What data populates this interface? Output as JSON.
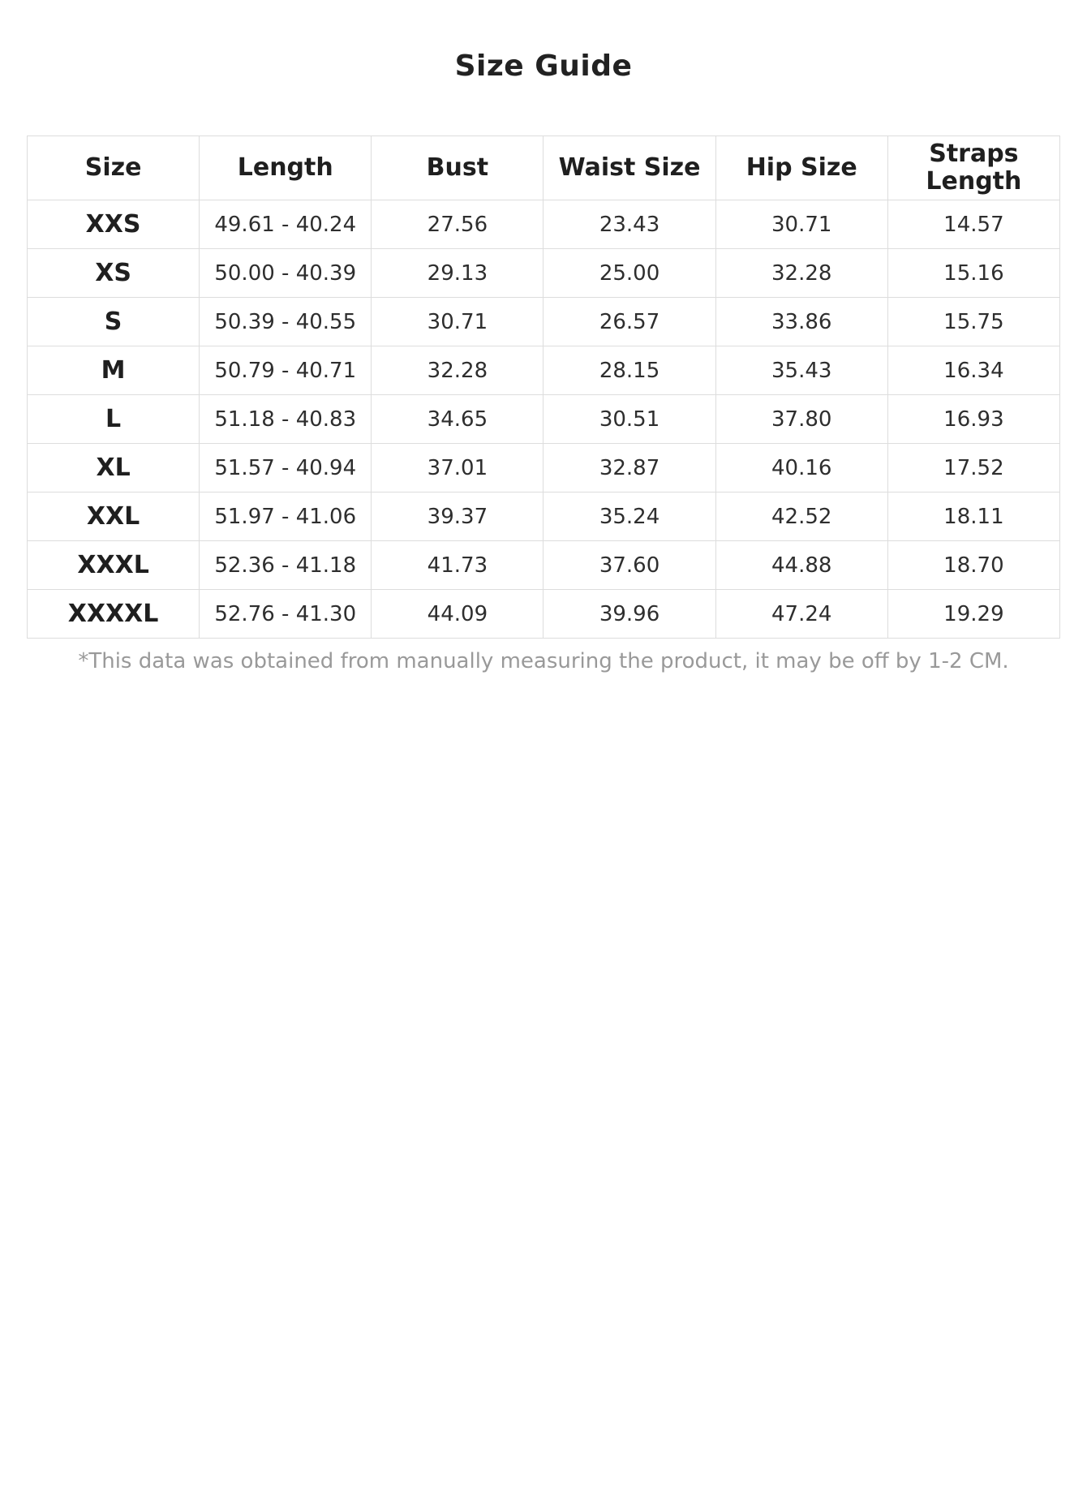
{
  "page": {
    "title": "Size Guide",
    "footnote": "*This data was obtained from manually measuring the product, it may be off by 1-2 CM."
  },
  "table": {
    "columns": [
      "Size",
      "Length",
      "Bust",
      "Waist Size",
      "Hip Size",
      "Straps Length"
    ],
    "rows": [
      {
        "size": "XXS",
        "length": "49.61 - 40.24",
        "bust": "27.56",
        "waist": "23.43",
        "hip": "30.71",
        "straps": "14.57"
      },
      {
        "size": "XS",
        "length": "50.00 - 40.39",
        "bust": "29.13",
        "waist": "25.00",
        "hip": "32.28",
        "straps": "15.16"
      },
      {
        "size": "S",
        "length": "50.39 - 40.55",
        "bust": "30.71",
        "waist": "26.57",
        "hip": "33.86",
        "straps": "15.75"
      },
      {
        "size": "M",
        "length": "50.79 - 40.71",
        "bust": "32.28",
        "waist": "28.15",
        "hip": "35.43",
        "straps": "16.34"
      },
      {
        "size": "L",
        "length": "51.18 - 40.83",
        "bust": "34.65",
        "waist": "30.51",
        "hip": "37.80",
        "straps": "16.93"
      },
      {
        "size": "XL",
        "length": "51.57 - 40.94",
        "bust": "37.01",
        "waist": "32.87",
        "hip": "40.16",
        "straps": "17.52"
      },
      {
        "size": "XXL",
        "length": "51.97 - 41.06",
        "bust": "39.37",
        "waist": "35.24",
        "hip": "42.52",
        "straps": "18.11"
      },
      {
        "size": "XXXL",
        "length": "52.36 - 41.18",
        "bust": "41.73",
        "waist": "37.60",
        "hip": "44.88",
        "straps": "18.70"
      },
      {
        "size": "XXXXL",
        "length": "52.76 - 41.30",
        "bust": "44.09",
        "waist": "39.96",
        "hip": "47.24",
        "straps": "19.29"
      }
    ]
  },
  "colors": {
    "text": "#222222",
    "data_text": "#2e2e2e",
    "muted_text": "#999999",
    "border": "#dddddd",
    "background": "#ffffff"
  }
}
